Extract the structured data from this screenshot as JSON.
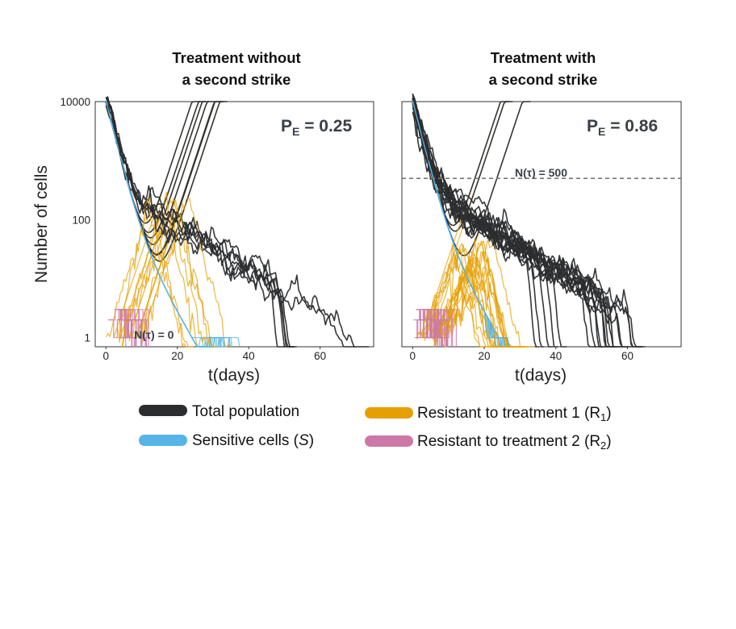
{
  "chart_data": [
    {
      "type": "line",
      "title_lines": [
        "Treatment without",
        "a second strike"
      ],
      "annotation_pe": {
        "main": "P",
        "sub": "E",
        "rest": " = 0.25"
      },
      "threshold_label": "N(τ) = 0",
      "threshold_value": 0,
      "xlabel": "t(days)",
      "ylabel": "Number of cells",
      "yscale": "log",
      "xlim": [
        -3,
        75
      ],
      "ylim": [
        0.7,
        10000
      ],
      "xticks": [
        0,
        20,
        40,
        60
      ],
      "yticks": [
        1,
        100,
        10000
      ],
      "ytick_labels": [
        "1",
        "100",
        "10000"
      ],
      "runs": 14,
      "series": [
        {
          "name": "Total population",
          "color": "#2b2d2f",
          "note": "all runs start at 10000, fall to ~200-400 by day 15; about half rebound to 10000 between day 28 and 43, the rest decline and go extinct between day 45 and 75"
        },
        {
          "name": "Sensitive cells (S)",
          "color": "#56b4e9",
          "note": "decline from 10000 to extinction around day 28-40"
        },
        {
          "name": "Resistant to treatment 1 (R1)",
          "color": "#e69f00",
          "note": "emerge near 1 at day 0-15, rise to ~10000 by day 30-40 in rebounding runs"
        },
        {
          "name": "Resistant to treatment 2 (R2)",
          "color": "#cc79a7",
          "note": "stay around 1 near day 0-5"
        }
      ]
    },
    {
      "type": "line",
      "title_lines": [
        "Treatment with",
        "a second strike"
      ],
      "annotation_pe": {
        "main": "P",
        "sub": "E",
        "rest": " = 0.86"
      },
      "threshold_label": "N(τ) = 500",
      "threshold_value": 500,
      "xlabel": "t(days)",
      "ylabel": "",
      "yscale": "log",
      "xlim": [
        -3,
        75
      ],
      "ylim": [
        0.7,
        10000
      ],
      "xticks": [
        0,
        20,
        40,
        60
      ],
      "yticks": [
        1,
        100,
        10000
      ],
      "runs": 22,
      "series": [
        {
          "name": "Total population",
          "color": "#2b2d2f",
          "note": "3 runs rebound to 10000 by day 28-37; the rest decline from ~500 at day 15 to extinction between day 35 and 68"
        },
        {
          "name": "Sensitive cells (S)",
          "color": "#56b4e9",
          "note": "extinct around day 24-27"
        },
        {
          "name": "Resistant to treatment 1 (R1)",
          "color": "#e69f00",
          "note": "peak around 10-40 cells near day 10, extinct by day 20"
        },
        {
          "name": "Resistant to treatment 2 (R2)",
          "color": "#cc79a7",
          "note": "stay around 1 near day 0-5"
        }
      ]
    }
  ],
  "legend": [
    {
      "key": "total",
      "color": "#2b2d2f",
      "label": "Total population",
      "italic": "",
      "suffix": "",
      "sub": "",
      "close": ""
    },
    {
      "key": "r1",
      "color": "#e69f00",
      "label": "Resistant to treatment 1 (R",
      "italic": "",
      "suffix": "",
      "sub": "1",
      "close": ")"
    },
    {
      "key": "sensitive",
      "color": "#56b4e9",
      "label": "Sensitive cells (",
      "italic": "S",
      "suffix": ")",
      "sub": "",
      "close": ""
    },
    {
      "key": "r2",
      "color": "#cc79a7",
      "label": "Resistant to treatment 2 (R",
      "italic": "",
      "suffix": "",
      "sub": "2",
      "close": ")"
    }
  ]
}
